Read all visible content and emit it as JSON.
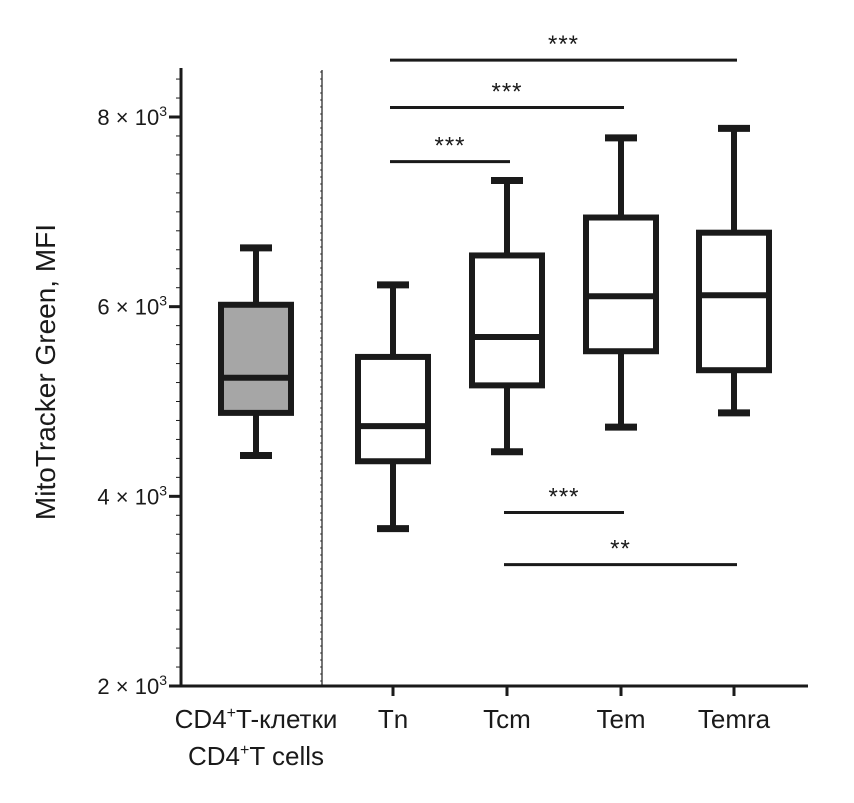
{
  "chart_data": {
    "type": "box",
    "ylabel": "MitoTracker Green, MFI",
    "ylim": [
      2000,
      8500
    ],
    "yticks": [
      {
        "value": 2000,
        "mant": "2",
        "base": "10",
        "exp": "3"
      },
      {
        "value": 4000,
        "mant": "4",
        "base": "10",
        "exp": "3"
      },
      {
        "value": 6000,
        "mant": "6",
        "base": "10",
        "exp": "3"
      },
      {
        "value": 8000,
        "mant": "8",
        "base": "10",
        "exp": "3"
      }
    ],
    "categories": [
      {
        "key": "cd4",
        "line1_a": "CD4",
        "line1_sup": "+",
        "line1_b": "T-клетки",
        "line2_a": "CD4",
        "line2_sup": "+",
        "line2_b": "T cells"
      },
      {
        "key": "tn",
        "label": "Tn"
      },
      {
        "key": "tcm",
        "label": "Tcm"
      },
      {
        "key": "tem",
        "label": "Tem"
      },
      {
        "key": "temra",
        "label": "Temra"
      }
    ],
    "boxes": [
      {
        "key": "cd4",
        "min": 4430,
        "q1": 4880,
        "median": 5250,
        "q3": 6020,
        "max": 6620,
        "fill": "#a6a6a6"
      },
      {
        "key": "tn",
        "min": 3660,
        "q1": 4370,
        "median": 4740,
        "q3": 5470,
        "max": 6230,
        "fill": "#ffffff"
      },
      {
        "key": "tcm",
        "min": 4470,
        "q1": 5170,
        "median": 5680,
        "q3": 6540,
        "max": 7330,
        "fill": "#ffffff"
      },
      {
        "key": "tem",
        "min": 4730,
        "q1": 5530,
        "median": 6110,
        "q3": 6940,
        "max": 7780,
        "fill": "#ffffff"
      },
      {
        "key": "temra",
        "min": 4880,
        "q1": 5330,
        "median": 6120,
        "q3": 6780,
        "max": 7880,
        "fill": "#ffffff"
      }
    ],
    "significance": [
      {
        "from": "tn",
        "to": "temra",
        "value": 8600,
        "label": "***"
      },
      {
        "from": "tn",
        "to": "tem",
        "value": 8100,
        "label": "***"
      },
      {
        "from": "tn",
        "to": "tcm",
        "value": 7530,
        "label": "***"
      },
      {
        "from": "tcm",
        "to": "tem",
        "value": 3830,
        "label": "***"
      },
      {
        "from": "tcm",
        "to": "temra",
        "value": 3280,
        "label": "**"
      }
    ],
    "divider_after": "cd4",
    "colors": {
      "ink": "#1a1a1a",
      "cd4_fill": "#a6a6a6"
    }
  }
}
